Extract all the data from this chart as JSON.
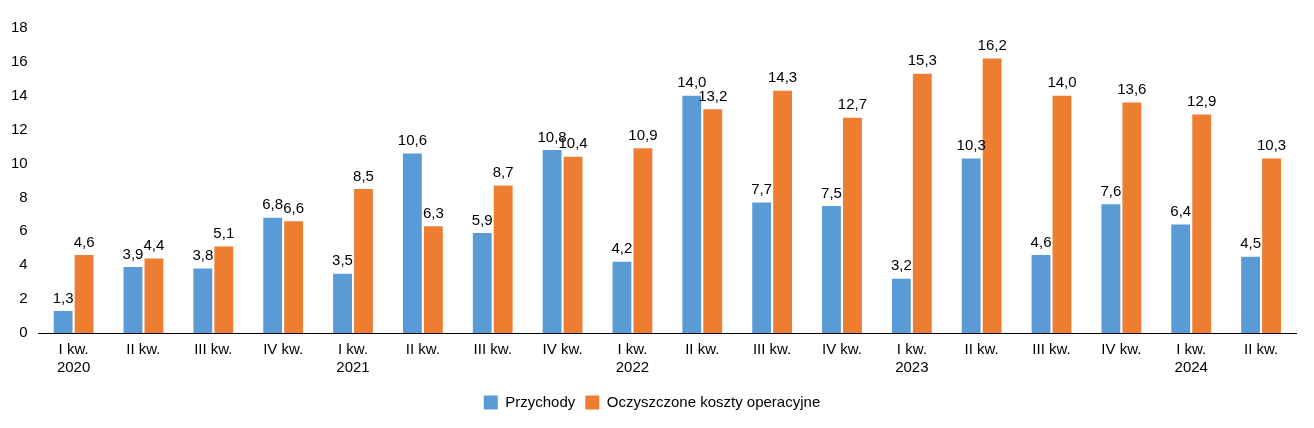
{
  "chart_data": {
    "type": "bar",
    "categories": [
      "I kw.\n2020",
      "II kw.",
      "III kw.",
      "IV kw.",
      "I kw.\n2021",
      "II kw.",
      "III kw.",
      "IV kw.",
      "I kw.\n2022",
      "II kw.",
      "III kw.",
      "IV kw.",
      "I kw.\n2023",
      "II kw.",
      "III kw.",
      "IV kw.",
      "I kw.\n2024",
      "II kw."
    ],
    "series": [
      {
        "name": "Przychody",
        "color": "#5b9bd5",
        "values": [
          1.3,
          3.9,
          3.8,
          6.8,
          3.5,
          10.6,
          5.9,
          10.8,
          4.2,
          14.0,
          7.7,
          7.5,
          3.2,
          10.3,
          4.6,
          7.6,
          6.4,
          4.5
        ],
        "value_labels": [
          "1,3",
          "3,9",
          "3,8",
          "6,8",
          "3,5",
          "10,6",
          "5,9",
          "10,8",
          "4,2",
          "14,0",
          "7,7",
          "7,5",
          "3,2",
          "10,3",
          "4,6",
          "7,6",
          "6,4",
          "4,5"
        ]
      },
      {
        "name": "Oczyszczone koszty operacyjne",
        "color": "#ed7d31",
        "values": [
          4.6,
          4.4,
          5.1,
          6.6,
          8.5,
          6.3,
          8.7,
          10.4,
          10.9,
          13.2,
          14.3,
          12.7,
          15.3,
          16.2,
          14.0,
          13.6,
          12.9,
          10.3
        ],
        "value_labels": [
          "4,6",
          "4,4",
          "5,1",
          "6,6",
          "8,5",
          "6,3",
          "8,7",
          "10,4",
          "10,9",
          "13,2",
          "14,3",
          "12,7",
          "15,3",
          "16,2",
          "14,0",
          "13,6",
          "12,9",
          "10,3"
        ]
      }
    ],
    "ylim": [
      0,
      18
    ],
    "yticks": [
      0,
      2,
      4,
      6,
      8,
      10,
      12,
      14,
      16,
      18
    ],
    "grid": false,
    "legend": "bottom"
  }
}
